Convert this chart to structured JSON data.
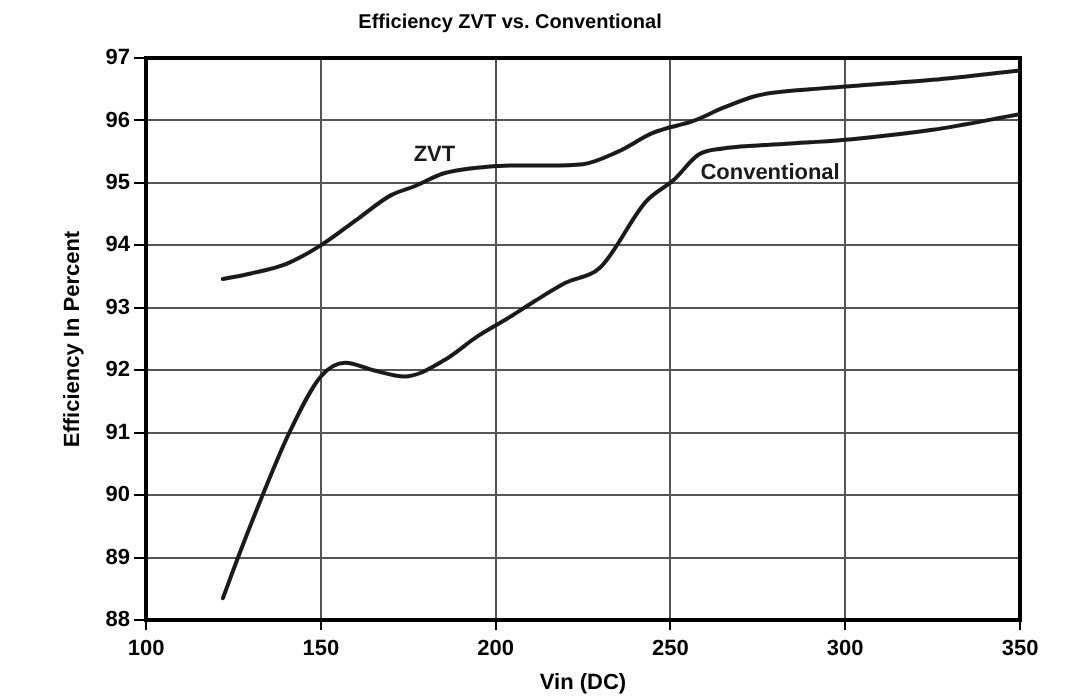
{
  "chart_data": {
    "type": "line",
    "title": "Efficiency ZVT vs. Conventional",
    "xlabel": "Vin (DC)",
    "ylabel": "Efficiency In Percent",
    "xlim": [
      100,
      350
    ],
    "xticks": [
      100,
      150,
      200,
      250,
      300,
      350
    ],
    "ylim": [
      88,
      97
    ],
    "yticks": [
      88,
      89,
      90,
      91,
      92,
      93,
      94,
      95,
      96,
      97
    ],
    "grid": true,
    "legend": false,
    "marker": "none",
    "line_style": "solid",
    "series": [
      {
        "name": "ZVT",
        "color": "#1a1a1a",
        "x": [
          122,
          130,
          140,
          150,
          160,
          170,
          177,
          185,
          194,
          205,
          215,
          225,
          235,
          245,
          257,
          265,
          275,
          290,
          302,
          325,
          350
        ],
        "values": [
          93.46,
          93.55,
          93.7,
          94.0,
          94.4,
          94.8,
          94.95,
          95.15,
          95.24,
          95.28,
          95.28,
          95.3,
          95.5,
          95.8,
          96.0,
          96.2,
          96.4,
          96.5,
          96.55,
          96.65,
          96.8
        ]
      },
      {
        "name": "Conventional",
        "color": "#1a1a1a",
        "x": [
          122,
          127,
          133,
          141,
          150,
          157,
          165,
          174,
          185,
          195,
          204,
          211,
          220,
          230,
          243,
          251,
          258,
          265,
          275,
          290,
          302,
          325,
          350
        ],
        "values": [
          88.35,
          89.1,
          89.95,
          91.0,
          91.9,
          92.12,
          92.0,
          91.9,
          92.15,
          92.55,
          92.85,
          93.1,
          93.4,
          93.65,
          94.7,
          95.05,
          95.45,
          95.55,
          95.6,
          95.65,
          95.7,
          95.85,
          96.1
        ]
      }
    ]
  }
}
